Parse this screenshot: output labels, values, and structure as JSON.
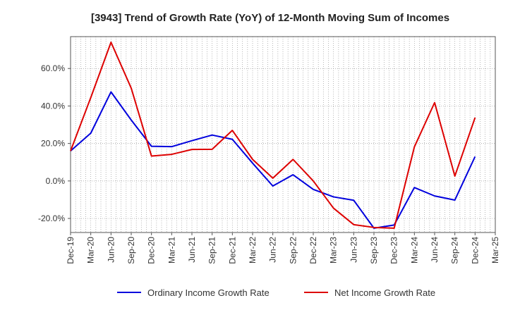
{
  "chart_data": {
    "type": "line",
    "title": "[3943]  Trend of Growth Rate (YoY) of 12-Month Moving Sum of Incomes",
    "xlabel": "",
    "ylabel": "",
    "categories": [
      "Dec-19",
      "Mar-20",
      "Jun-20",
      "Sep-20",
      "Dec-20",
      "Mar-21",
      "Jun-21",
      "Sep-21",
      "Dec-21",
      "Mar-22",
      "Jun-22",
      "Sep-22",
      "Dec-22",
      "Mar-23",
      "Jun-23",
      "Sep-23",
      "Dec-23",
      "Mar-24",
      "Jun-24",
      "Sep-24",
      "Dec-24",
      "Mar-25"
    ],
    "ylim": [
      -27.5,
      77
    ],
    "yticks": [
      -20,
      0,
      20,
      40,
      60
    ],
    "ytick_labels": [
      "-20.0%",
      "0.0%",
      "20.0%",
      "40.0%",
      "60.0%"
    ],
    "grid": true,
    "legend_position": "bottom",
    "series": [
      {
        "name": "Ordinary Income Growth Rate",
        "color": "#0000dd",
        "values": [
          16.0,
          25.5,
          47.5,
          32.5,
          18.5,
          18.3,
          21.5,
          24.5,
          22.2,
          9.5,
          -2.7,
          3.3,
          -4.5,
          -8.5,
          -10.3,
          -25.2,
          -23.5,
          -3.5,
          -8.0,
          -10.2,
          13.0,
          null
        ]
      },
      {
        "name": "Net Income Growth Rate",
        "color": "#dd0000",
        "values": [
          16.0,
          44.5,
          74.0,
          49.5,
          13.3,
          14.2,
          16.8,
          16.9,
          27.0,
          11.5,
          1.5,
          11.5,
          0.0,
          -14.5,
          -23.3,
          -24.8,
          -25.2,
          18.2,
          41.8,
          2.6,
          33.8,
          null
        ]
      }
    ]
  }
}
